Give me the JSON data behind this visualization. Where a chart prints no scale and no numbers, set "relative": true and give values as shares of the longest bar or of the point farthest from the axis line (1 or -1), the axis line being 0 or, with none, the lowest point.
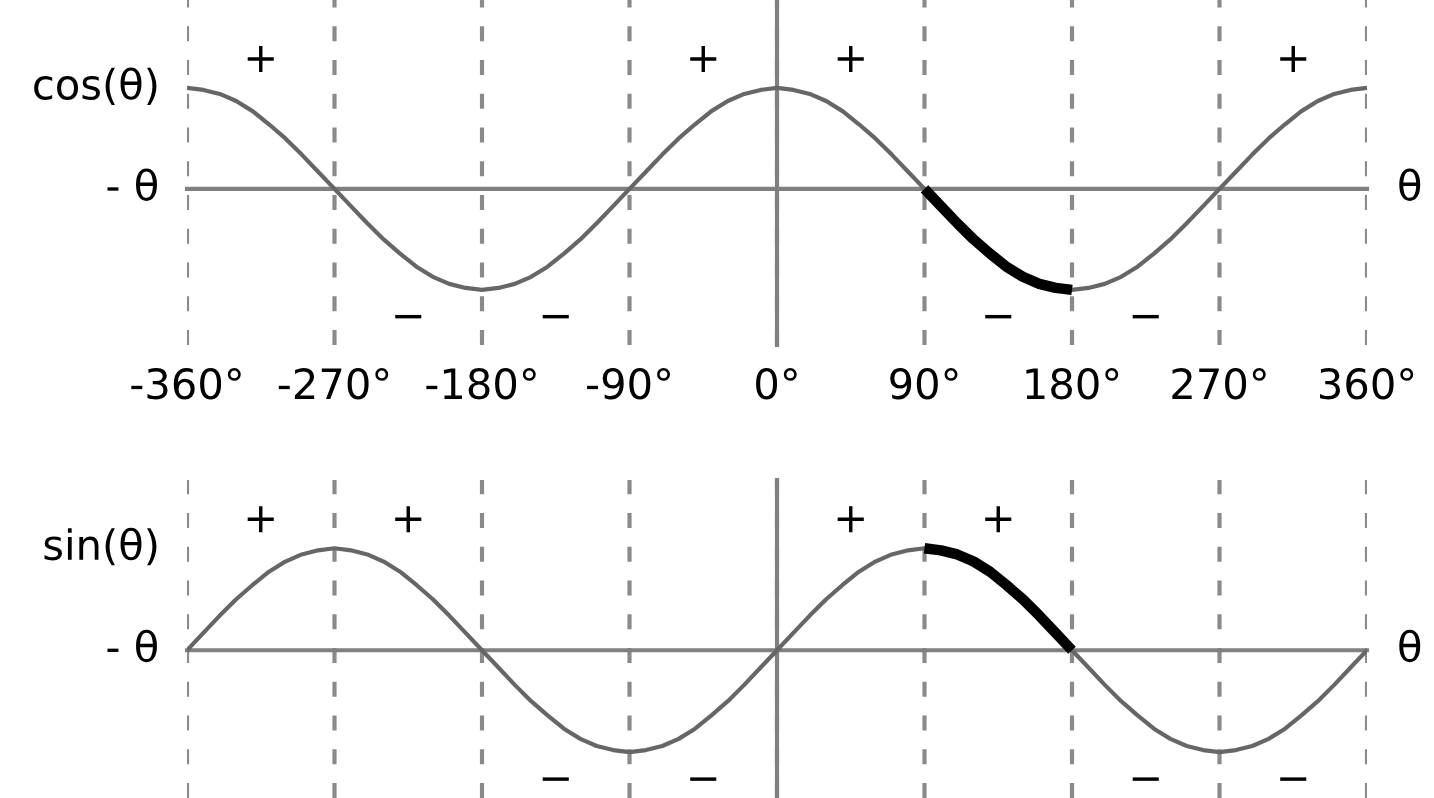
{
  "chart_data": [
    {
      "type": "line",
      "ylabel": "cos(θ)",
      "xlabel": "θ",
      "relative": true,
      "grid": "x",
      "tick_labels": "x",
      "xlim": [
        -360,
        360
      ],
      "xticks": [
        {
          "value": -360,
          "label": "-360°"
        },
        {
          "value": -270,
          "label": "-270°"
        },
        {
          "value": -180,
          "label": "-180°"
        },
        {
          "value": -90,
          "label": "-90°"
        },
        {
          "value": 0,
          "label": "0°"
        },
        {
          "value": 90,
          "label": "90°"
        },
        {
          "value": 180,
          "label": "180°"
        },
        {
          "value": 270,
          "label": "270°"
        },
        {
          "value": 360,
          "label": "360°"
        }
      ],
      "annotations": [
        "- θ",
        "+",
        "−",
        "−",
        "+",
        "+",
        "−",
        "−",
        "+"
      ],
      "x": [
        -360,
        -350,
        -340,
        -330,
        -320,
        -310,
        -300,
        -290,
        -280,
        -270,
        -260,
        -250,
        -240,
        -230,
        -220,
        -210,
        -200,
        -190,
        -180,
        -170,
        -160,
        -150,
        -140,
        -130,
        -120,
        -110,
        -100,
        -90,
        -80,
        -70,
        -60,
        -50,
        -40,
        -30,
        -20,
        -10,
        0,
        10,
        20,
        30,
        40,
        50,
        60,
        70,
        80,
        90,
        100,
        110,
        120,
        130,
        140,
        150,
        160,
        170,
        180,
        190,
        200,
        210,
        220,
        230,
        240,
        250,
        260,
        270,
        280,
        290,
        300,
        310,
        320,
        330,
        340,
        350,
        360
      ],
      "series": [
        {
          "color": "#666666",
          "values": [
            1,
            0.98,
            0.94,
            0.87,
            0.77,
            0.64,
            0.5,
            0.34,
            0.17,
            0,
            -0.17,
            -0.34,
            -0.5,
            -0.64,
            -0.77,
            -0.87,
            -0.94,
            -0.98,
            -1,
            -0.98,
            -0.94,
            -0.87,
            -0.77,
            -0.64,
            -0.5,
            -0.34,
            -0.17,
            0,
            0.17,
            0.34,
            0.5,
            0.64,
            0.77,
            0.87,
            0.94,
            0.98,
            1,
            0.98,
            0.94,
            0.87,
            0.77,
            0.64,
            0.5,
            0.34,
            0.17,
            0,
            -0.17,
            -0.34,
            -0.5,
            -0.64,
            -0.77,
            -0.87,
            -0.94,
            -0.98,
            -1,
            -0.98,
            -0.94,
            -0.87,
            -0.77,
            -0.64,
            -0.5,
            -0.34,
            -0.17,
            0,
            0.17,
            0.34,
            0.5,
            0.64,
            0.77,
            0.87,
            0.94,
            0.98,
            1
          ]
        },
        {
          "color": "#000000",
          "x": [
            90,
            100,
            110,
            120,
            130,
            140,
            150,
            160,
            170,
            180
          ],
          "values": [
            0,
            -0.17,
            -0.34,
            -0.5,
            -0.64,
            -0.77,
            -0.87,
            -0.94,
            -0.98,
            -1
          ]
        }
      ]
    },
    {
      "type": "line",
      "ylabel": "sin(θ)",
      "xlabel": "θ",
      "relative": true,
      "grid": "x",
      "tick_labels": false,
      "xlim": [
        -360,
        360
      ],
      "xticks": [
        -360,
        -270,
        -180,
        -90,
        0,
        90,
        180,
        270,
        360
      ],
      "annotations": [
        "- θ",
        "+",
        "+",
        "−",
        "−",
        "+",
        "+",
        "−",
        "−"
      ],
      "x": [
        -360,
        -350,
        -340,
        -330,
        -320,
        -310,
        -300,
        -290,
        -280,
        -270,
        -260,
        -250,
        -240,
        -230,
        -220,
        -210,
        -200,
        -190,
        -180,
        -170,
        -160,
        -150,
        -140,
        -130,
        -120,
        -110,
        -100,
        -90,
        -80,
        -70,
        -60,
        -50,
        -40,
        -30,
        -20,
        -10,
        0,
        10,
        20,
        30,
        40,
        50,
        60,
        70,
        80,
        90,
        100,
        110,
        120,
        130,
        140,
        150,
        160,
        170,
        180,
        190,
        200,
        210,
        220,
        230,
        240,
        250,
        260,
        270,
        280,
        290,
        300,
        310,
        320,
        330,
        340,
        350,
        360
      ],
      "series": [
        {
          "color": "#666666",
          "values": [
            0,
            0.17,
            0.34,
            0.5,
            0.64,
            0.77,
            0.87,
            0.94,
            0.98,
            1,
            0.98,
            0.94,
            0.87,
            0.77,
            0.64,
            0.5,
            0.34,
            0.17,
            0,
            -0.17,
            -0.34,
            -0.5,
            -0.64,
            -0.77,
            -0.87,
            -0.94,
            -0.98,
            -1,
            -0.98,
            -0.94,
            -0.87,
            -0.77,
            -0.64,
            -0.5,
            -0.34,
            -0.17,
            0,
            0.17,
            0.34,
            0.5,
            0.64,
            0.77,
            0.87,
            0.94,
            0.98,
            1,
            0.98,
            0.94,
            0.87,
            0.77,
            0.64,
            0.5,
            0.34,
            0.17,
            0,
            -0.17,
            -0.34,
            -0.5,
            -0.64,
            -0.77,
            -0.87,
            -0.94,
            -0.98,
            -1,
            -0.98,
            -0.94,
            -0.87,
            -0.77,
            -0.64,
            -0.5,
            -0.34,
            -0.17,
            0
          ]
        },
        {
          "color": "#000000",
          "x": [
            90,
            100,
            110,
            120,
            130,
            140,
            150,
            160,
            170,
            180
          ],
          "values": [
            1,
            0.98,
            0.94,
            0.87,
            0.77,
            0.64,
            0.5,
            0.34,
            0.17,
            0
          ]
        }
      ]
    }
  ]
}
